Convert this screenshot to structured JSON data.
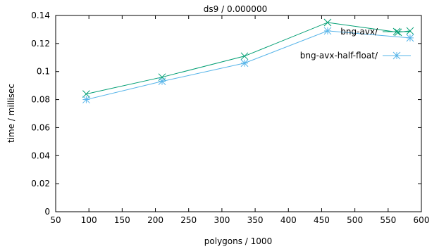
{
  "chart_data": {
    "type": "line",
    "title": "ds9 / 0.000000",
    "xlabel": "polygons / 1000",
    "ylabel": "time / millisec",
    "xlim": [
      50,
      600
    ],
    "ylim": [
      0,
      0.14
    ],
    "xticks": [
      50,
      100,
      150,
      200,
      250,
      300,
      350,
      400,
      450,
      500,
      550,
      600
    ],
    "xtick_labels": [
      "50",
      "100",
      "150",
      "200",
      "250",
      "300",
      "350",
      "400",
      "450",
      "500",
      "550",
      "600"
    ],
    "yticks": [
      0,
      0.02,
      0.04,
      0.06,
      0.08,
      0.1,
      0.12,
      0.14
    ],
    "ytick_labels": [
      "0",
      "0.02",
      "0.04",
      "0.06",
      "0.08",
      "0.1",
      "0.12",
      "0.14"
    ],
    "grid": false,
    "legend_position": "top-right",
    "series": [
      {
        "name": "bng-avx/",
        "color": "#009e73",
        "marker": "x",
        "x": [
          96,
          210,
          334,
          459,
          565,
          583
        ],
        "y": [
          0.084,
          0.096,
          0.111,
          0.135,
          0.128,
          0.129
        ]
      },
      {
        "name": "bng-avx-half-float/",
        "color": "#56b4e9",
        "marker": "asterisk",
        "x": [
          96,
          210,
          334,
          459,
          583
        ],
        "y": [
          0.08,
          0.093,
          0.106,
          0.129,
          0.124
        ]
      }
    ]
  }
}
